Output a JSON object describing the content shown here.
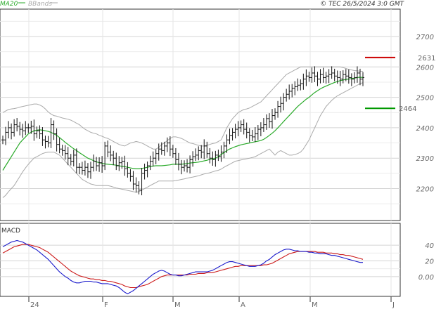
{
  "header": {
    "legend_ma": "MA20",
    "legend_bb": "BBands",
    "copyright": "© TEC 26/5/2024 3:0 GMT"
  },
  "colors": {
    "price": "#111111",
    "ma": "#2aaa2a",
    "bbands": "#aaaaaa",
    "resistance": "#cc0000",
    "support": "#009900",
    "macd": "#1a1acc",
    "signal": "#cc1a1a",
    "grid": "#d4d4d4",
    "panel": "#ffffff",
    "axis_text": "#aaaaaa",
    "border": "#333333"
  },
  "chart_data": [
    {
      "type": "ohlc",
      "price_axis": {
        "ticks": [
          "2200",
          "2300",
          "2400",
          "2500",
          "2600",
          "2700"
        ],
        "ylim": [
          2095,
          2790
        ]
      },
      "x_labels": [
        "24",
        "F",
        "M",
        "A",
        "M",
        "J"
      ],
      "levels": [
        {
          "name": "resistance",
          "label": "2631",
          "value": 2631
        },
        {
          "name": "support",
          "label": "2464",
          "value": 2464
        }
      ],
      "close": [
        2360,
        2385,
        2400,
        2385,
        2410,
        2405,
        2395,
        2390,
        2400,
        2400,
        2405,
        2380,
        2390,
        2380,
        2360,
        2355,
        2350,
        2410,
        2380,
        2345,
        2330,
        2325,
        2315,
        2300,
        2290,
        2310,
        2270,
        2270,
        2260,
        2270,
        2255,
        2270,
        2290,
        2275,
        2285,
        2275,
        2340,
        2320,
        2310,
        2300,
        2275,
        2285,
        2290,
        2265,
        2250,
        2240,
        2215,
        2210,
        2195,
        2250,
        2260,
        2275,
        2290,
        2300,
        2315,
        2330,
        2325,
        2340,
        2350,
        2330,
        2315,
        2295,
        2280,
        2270,
        2275,
        2270,
        2295,
        2305,
        2310,
        2325,
        2320,
        2340,
        2315,
        2300,
        2295,
        2310,
        2305,
        2320,
        2340,
        2360,
        2375,
        2385,
        2395,
        2400,
        2410,
        2395,
        2385,
        2375,
        2370,
        2380,
        2395,
        2400,
        2410,
        2430,
        2420,
        2440,
        2450,
        2470,
        2480,
        2500,
        2510,
        2520,
        2530,
        2535,
        2540,
        2545,
        2560,
        2570,
        2565,
        2580,
        2570,
        2560,
        2575,
        2565,
        2570,
        2575,
        2580,
        2570,
        2565,
        2560,
        2575,
        2570,
        2565,
        2560,
        2565,
        2580,
        2560,
        2565
      ],
      "ma20": [
        2260,
        2275,
        2290,
        2305,
        2320,
        2335,
        2350,
        2360,
        2370,
        2380,
        2385,
        2390,
        2392,
        2393,
        2392,
        2390,
        2388,
        2385,
        2380,
        2375,
        2368,
        2360,
        2352,
        2345,
        2338,
        2331,
        2325,
        2318,
        2312,
        2306,
        2300,
        2296,
        2292,
        2288,
        2285,
        2283,
        2281,
        2280,
        2279,
        2278,
        2277,
        2275,
        2273,
        2272,
        2270,
        2268,
        2266,
        2265,
        2265,
        2266,
        2268,
        2270,
        2272,
        2274,
        2275,
        2275,
        2275,
        2276,
        2277,
        2278,
        2280,
        2280,
        2280,
        2280,
        2281,
        2282,
        2284,
        2285,
        2286,
        2287,
        2289,
        2291,
        2293,
        2296,
        2298,
        2300,
        2305,
        2312,
        2318,
        2325,
        2330,
        2334,
        2338,
        2341,
        2344,
        2346,
        2348,
        2350,
        2352,
        2354,
        2356,
        2358,
        2362,
        2368,
        2375,
        2382,
        2390,
        2400,
        2410,
        2420,
        2430,
        2440,
        2450,
        2460,
        2470,
        2478,
        2486,
        2494,
        2500,
        2508,
        2516,
        2522,
        2528,
        2533,
        2537,
        2541,
        2545,
        2549,
        2552,
        2555,
        2557,
        2559,
        2560,
        2562,
        2563,
        2565,
        2566,
        2565
      ],
      "bb_upper": [
        2450,
        2455,
        2460,
        2462,
        2463,
        2465,
        2468,
        2470,
        2472,
        2474,
        2476,
        2478,
        2478,
        2475,
        2470,
        2462,
        2452,
        2445,
        2440,
        2438,
        2435,
        2432,
        2430,
        2428,
        2425,
        2420,
        2415,
        2410,
        2402,
        2395,
        2390,
        2385,
        2382,
        2380,
        2375,
        2372,
        2368,
        2365,
        2360,
        2355,
        2350,
        2345,
        2342,
        2340,
        2345,
        2350,
        2352,
        2355,
        2353,
        2350,
        2345,
        2340,
        2335,
        2330,
        2330,
        2335,
        2345,
        2350,
        2358,
        2365,
        2370,
        2370,
        2368,
        2365,
        2360,
        2355,
        2350,
        2348,
        2345,
        2342,
        2340,
        2340,
        2342,
        2345,
        2348,
        2350,
        2355,
        2360,
        2380,
        2400,
        2415,
        2430,
        2440,
        2450,
        2455,
        2460,
        2462,
        2465,
        2470,
        2475,
        2480,
        2485,
        2495,
        2505,
        2515,
        2525,
        2535,
        2545,
        2555,
        2565,
        2575,
        2580,
        2585,
        2590,
        2595,
        2600,
        2600,
        2600,
        2600,
        2600,
        2600,
        2600,
        2600,
        2600,
        2600,
        2600,
        2600,
        2600,
        2600,
        2600,
        2598,
        2595,
        2592,
        2590,
        2588,
        2587,
        2586,
        2585
      ],
      "bb_lower": [
        2170,
        2178,
        2190,
        2200,
        2210,
        2225,
        2240,
        2255,
        2268,
        2280,
        2290,
        2300,
        2305,
        2310,
        2315,
        2318,
        2320,
        2320,
        2320,
        2315,
        2310,
        2300,
        2290,
        2280,
        2270,
        2260,
        2250,
        2240,
        2230,
        2225,
        2220,
        2215,
        2213,
        2210,
        2210,
        2210,
        2210,
        2210,
        2208,
        2205,
        2202,
        2200,
        2198,
        2196,
        2194,
        2192,
        2190,
        2188,
        2190,
        2195,
        2200,
        2205,
        2210,
        2215,
        2220,
        2225,
        2225,
        2225,
        2225,
        2225,
        2225,
        2226,
        2228,
        2230,
        2232,
        2234,
        2236,
        2238,
        2240,
        2242,
        2245,
        2248,
        2250,
        2252,
        2255,
        2258,
        2260,
        2264,
        2270,
        2275,
        2280,
        2285,
        2290,
        2292,
        2294,
        2296,
        2298,
        2300,
        2302,
        2305,
        2310,
        2315,
        2320,
        2325,
        2330,
        2320,
        2310,
        2320,
        2325,
        2320,
        2315,
        2310,
        2310,
        2312,
        2315,
        2320,
        2330,
        2345,
        2360,
        2380,
        2400,
        2420,
        2440,
        2455,
        2470,
        2480,
        2490,
        2498,
        2505,
        2510,
        2515,
        2520,
        2525,
        2530,
        2535,
        2540,
        2545,
        2548
      ]
    },
    {
      "type": "line",
      "title": "MACD",
      "y_ticks": [
        "0.00",
        "20",
        "40"
      ],
      "ylim": [
        -10,
        50
      ],
      "macd": [
        38,
        40,
        42,
        44,
        45,
        46,
        45,
        44,
        42,
        40,
        38,
        36,
        34,
        31,
        28,
        25,
        22,
        18,
        14,
        10,
        6,
        3,
        0,
        -2,
        -5,
        -7,
        -8,
        -8,
        -7,
        -6,
        -6,
        -6,
        -7,
        -7,
        -8,
        -9,
        -9,
        -9,
        -10,
        -11,
        -12,
        -14,
        -17,
        -20,
        -22,
        -20,
        -18,
        -15,
        -12,
        -9,
        -6,
        -3,
        0,
        3,
        5,
        7,
        8,
        7,
        5,
        3,
        2,
        2,
        1,
        1,
        2,
        3,
        4,
        5,
        6,
        6,
        6,
        6,
        6,
        7,
        8,
        10,
        12,
        14,
        16,
        18,
        19,
        19,
        18,
        17,
        16,
        15,
        14,
        13,
        13,
        13,
        14,
        15,
        17,
        20,
        22,
        25,
        28,
        30,
        32,
        34,
        35,
        35,
        34,
        33,
        33,
        32,
        32,
        32,
        31,
        31,
        30,
        30,
        29,
        29,
        29,
        28,
        27,
        27,
        26,
        25,
        24,
        23,
        22,
        21,
        20,
        19,
        18,
        18
      ],
      "signal": [
        30,
        32,
        34,
        36,
        38,
        39,
        40,
        41,
        41,
        41,
        40,
        39,
        38,
        37,
        35,
        33,
        31,
        28,
        25,
        22,
        19,
        16,
        13,
        10,
        7,
        5,
        3,
        1,
        0,
        -1,
        -2,
        -3,
        -3,
        -4,
        -4,
        -5,
        -5,
        -6,
        -6,
        -7,
        -8,
        -9,
        -10,
        -12,
        -13,
        -14,
        -14,
        -14,
        -13,
        -12,
        -11,
        -10,
        -8,
        -6,
        -4,
        -2,
        0,
        1,
        2,
        2,
        2,
        2,
        2,
        2,
        2,
        2,
        3,
        3,
        3,
        4,
        4,
        4,
        5,
        5,
        5,
        6,
        7,
        8,
        9,
        10,
        11,
        12,
        13,
        13,
        14,
        14,
        14,
        14,
        14,
        14,
        14,
        14,
        15,
        15,
        16,
        17,
        19,
        21,
        23,
        25,
        27,
        29,
        30,
        31,
        32,
        32,
        32,
        32,
        32,
        32,
        32,
        31,
        31,
        31,
        30,
        30,
        30,
        29,
        29,
        28,
        28,
        27,
        27,
        26,
        25,
        24,
        23,
        22
      ]
    }
  ]
}
